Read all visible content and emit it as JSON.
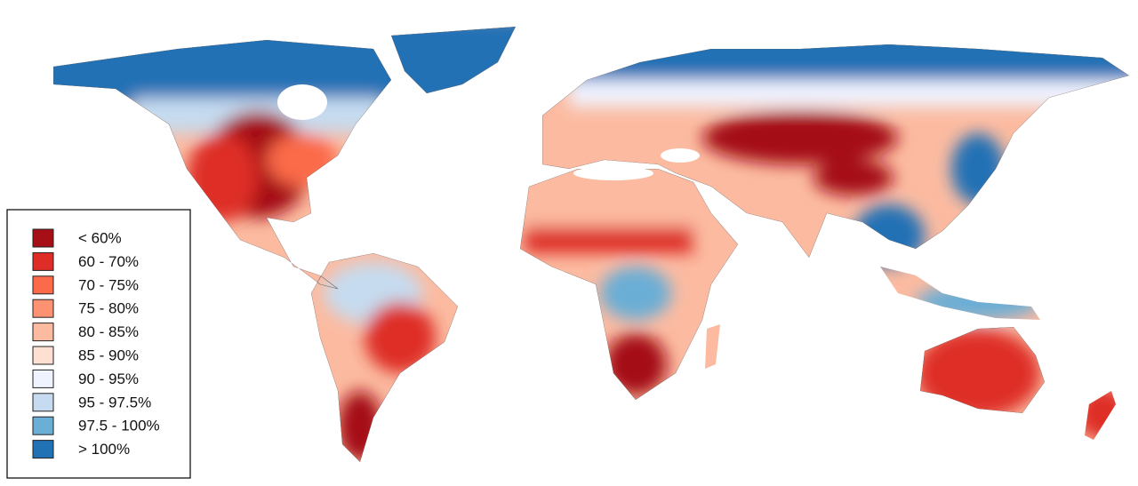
{
  "legend": {
    "items": [
      {
        "label": "< 60%",
        "color": "#a50f15"
      },
      {
        "label": "60 - 70%",
        "color": "#de2d26"
      },
      {
        "label": "70 - 75%",
        "color": "#fb6a4a"
      },
      {
        "label": "75 - 80%",
        "color": "#fc9272"
      },
      {
        "label": "80 - 85%",
        "color": "#fcbba1"
      },
      {
        "label": "85 - 90%",
        "color": "#fee0d2"
      },
      {
        "label": "90 - 95%",
        "color": "#eff3ff"
      },
      {
        "label": "95 - 97.5%",
        "color": "#c6dbef"
      },
      {
        "label": "97.5 - 100%",
        "color": "#6baed6"
      },
      {
        "label": "> 100%",
        "color": "#2171b5"
      }
    ]
  }
}
